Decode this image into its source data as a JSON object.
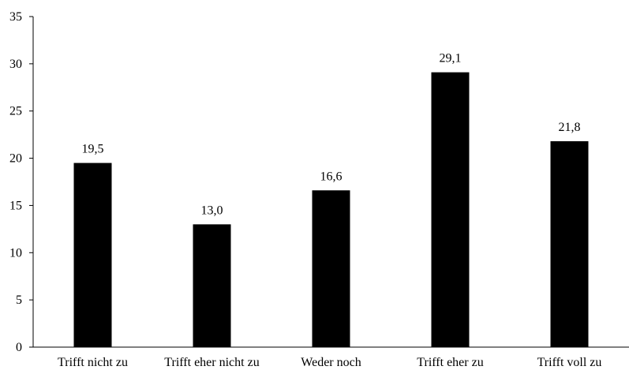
{
  "chart_data": {
    "type": "bar",
    "categories": [
      "Trifft nicht zu",
      "Trifft eher nicht zu",
      "Weder noch",
      "Trifft eher zu",
      "Trifft voll zu"
    ],
    "values": [
      19.5,
      13.0,
      16.6,
      29.1,
      21.8
    ],
    "data_labels": [
      "19,5",
      "13,0",
      "16,6",
      "29,1",
      "21,8"
    ],
    "yticks": [
      0,
      5,
      10,
      15,
      20,
      25,
      30,
      35
    ],
    "ytick_labels": [
      "0",
      "5",
      "10",
      "15",
      "20",
      "25",
      "30",
      "35"
    ],
    "ylim": [
      0,
      35
    ],
    "title": "",
    "xlabel": "",
    "ylabel": "",
    "grid": false,
    "bar_color": "#000000"
  }
}
